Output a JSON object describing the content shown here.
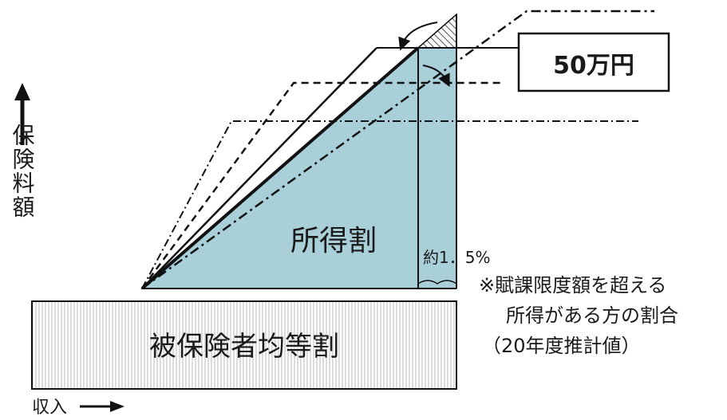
{
  "y_axis_label": "保険料額",
  "x_axis_label": "収入",
  "income_portion_label": "所得割",
  "flat_portion_label": "被保険者均等割",
  "limit_box_label": "50万円",
  "percent_label": "約1．5%",
  "note": {
    "line1": "※賦課限度額を超える",
    "line2": "所得がある方の割合",
    "line3": "（20年度推計値）"
  },
  "colors": {
    "fill": "#a9cfd9",
    "ink": "#111111",
    "background": "#ffffff"
  }
}
